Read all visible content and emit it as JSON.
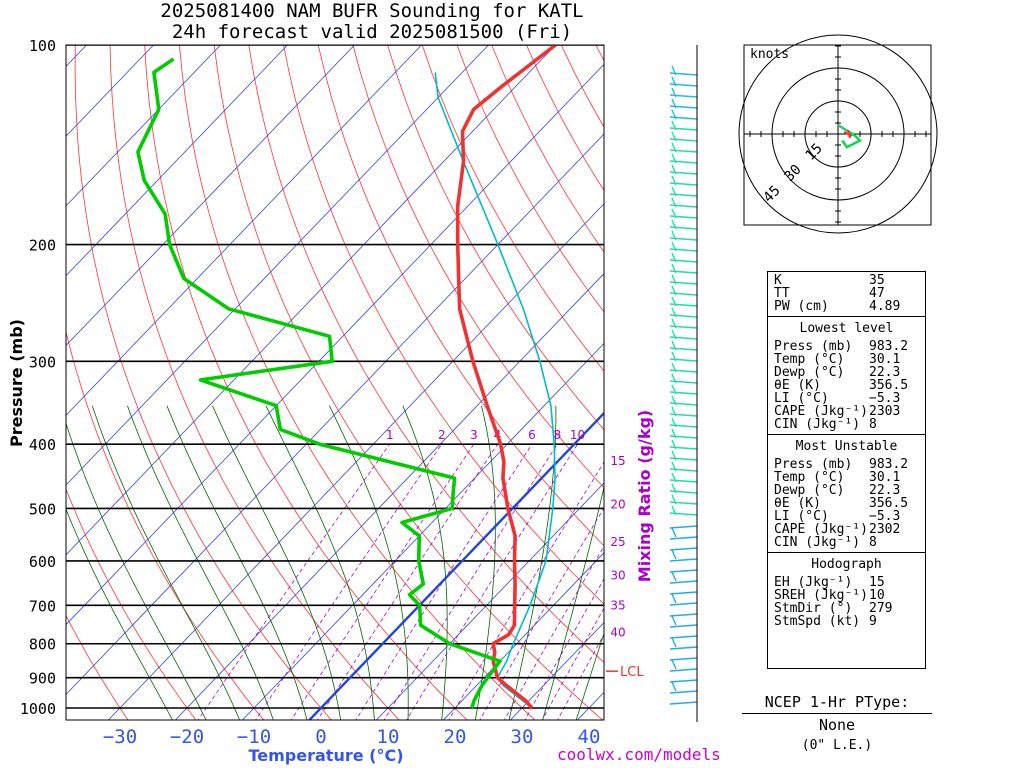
{
  "title": {
    "line1": "2025081400 NAM BUFR Sounding for KATL",
    "line2": "24h forecast valid 2025081500 (Fri)"
  },
  "site_credit": "coolwx.com/models",
  "chart_data": {
    "type": "skew-t",
    "xlabel": "Temperature (°C)",
    "ylabel": "Pressure (mb)",
    "xlim": [
      -38,
      42
    ],
    "ylim": [
      1050,
      100
    ],
    "x_ticks": [
      -30,
      -20,
      -10,
      0,
      10,
      20,
      30,
      40
    ],
    "y_ticks": [
      100,
      200,
      300,
      400,
      500,
      600,
      700,
      800,
      900,
      1000
    ],
    "temperature": {
      "color": "#ee3333",
      "points": [
        [
          1000,
          31.5
        ],
        [
          975,
          29.5
        ],
        [
          950,
          27.0
        ],
        [
          925,
          24.5
        ],
        [
          900,
          22.0
        ],
        [
          875,
          20.5
        ],
        [
          850,
          19.0
        ],
        [
          825,
          18.0
        ],
        [
          800,
          16.5
        ],
        [
          775,
          17.5
        ],
        [
          750,
          17.0
        ],
        [
          700,
          14.2
        ],
        [
          650,
          11.2
        ],
        [
          600,
          7.8
        ],
        [
          550,
          4.3
        ],
        [
          500,
          -0.7
        ],
        [
          450,
          -5.8
        ],
        [
          425,
          -8.0
        ],
        [
          400,
          -11.0
        ],
        [
          350,
          -18.5
        ],
        [
          300,
          -27.0
        ],
        [
          250,
          -36.5
        ],
        [
          200,
          -46.0
        ],
        [
          175,
          -51.5
        ],
        [
          150,
          -57.0
        ],
        [
          135,
          -61.5
        ],
        [
          125,
          -63.0
        ],
        [
          115,
          -62.0
        ],
        [
          100,
          -60.0
        ]
      ]
    },
    "dewpoint": {
      "color": "#00cc00",
      "points": [
        [
          1000,
          22.5
        ],
        [
          975,
          21.8
        ],
        [
          950,
          21.3
        ],
        [
          925,
          20.8
        ],
        [
          900,
          20.5
        ],
        [
          850,
          20.0
        ],
        [
          800,
          10.0
        ],
        [
          750,
          3.0
        ],
        [
          700,
          0.0
        ],
        [
          675,
          -3.0
        ],
        [
          650,
          -2.5
        ],
        [
          600,
          -6.5
        ],
        [
          550,
          -10.0
        ],
        [
          525,
          -14.5
        ],
        [
          500,
          -9.0
        ],
        [
          475,
          -11.0
        ],
        [
          450,
          -13.0
        ],
        [
          400,
          -38.0
        ],
        [
          380,
          -46.0
        ],
        [
          350,
          -50.0
        ],
        [
          320,
          -65.0
        ],
        [
          300,
          -48.0
        ],
        [
          275,
          -52.0
        ],
        [
          250,
          -71.0
        ],
        [
          225,
          -82.0
        ],
        [
          200,
          -89.0
        ],
        [
          180,
          -94.0
        ],
        [
          160,
          -102.0
        ],
        [
          145,
          -107.0
        ],
        [
          125,
          -110.0
        ],
        [
          110,
          -116.0
        ],
        [
          105,
          -115.0
        ]
      ]
    },
    "parcel": {
      "color": "#00bbcc",
      "points": [
        [
          1000,
          31.5
        ],
        [
          925,
          24.0
        ],
        [
          900,
          22.0
        ],
        [
          850,
          21.0
        ],
        [
          800,
          19.5
        ],
        [
          700,
          16.5
        ],
        [
          600,
          12.5
        ],
        [
          500,
          6.0
        ],
        [
          450,
          2.0
        ],
        [
          400,
          -3.0
        ],
        [
          350,
          -9.0
        ],
        [
          300,
          -17.0
        ],
        [
          250,
          -27.0
        ],
        [
          200,
          -40.0
        ],
        [
          150,
          -57.0
        ],
        [
          120,
          -70.0
        ],
        [
          110,
          -74.0
        ]
      ]
    },
    "freezing_line_color": "#2244dd",
    "lcl": {
      "label": "LCL",
      "pressure": 880
    },
    "mixing_ratio": {
      "label": "Mixing Ratio (g/kg)",
      "values": [
        1,
        2,
        3,
        4,
        6,
        8,
        10,
        15,
        20,
        25,
        30,
        35,
        40
      ]
    },
    "hodograph": {
      "unit_label": "knots",
      "ring_labels": [
        "15",
        "30",
        "45"
      ],
      "segments": [
        {
          "color": "#00dd44",
          "points": [
            [
              2,
              3
            ],
            [
              4,
              6
            ],
            [
              10,
              3
            ],
            [
              8,
              1
            ],
            [
              5,
              -1
            ]
          ]
        },
        {
          "color": "#22cc66",
          "points": [
            [
              5,
              -1
            ],
            [
              0,
              -4
            ]
          ]
        }
      ],
      "storm_motion_color": "#ee3333"
    }
  },
  "indices": {
    "top": [
      {
        "label": "K",
        "value": "35"
      },
      {
        "label": "TT",
        "value": "47"
      },
      {
        "label": "PW (cm)",
        "value": "4.89"
      }
    ],
    "lowest_head": "Lowest level",
    "lowest": [
      {
        "label": "Press (mb)",
        "value": "983.2"
      },
      {
        "label": "Temp (°C)",
        "value": "30.1"
      },
      {
        "label": "Dewp (°C)",
        "value": "22.3"
      },
      {
        "label": "θE (K)",
        "value": "356.5"
      },
      {
        "label": "LI (°C)",
        "value": "−5.3"
      },
      {
        "label": "CAPE (Jkg⁻¹)",
        "value": "2303"
      },
      {
        "label": "CIN (Jkg⁻¹)",
        "value": "8"
      }
    ],
    "unstable_head": "Most Unstable",
    "unstable": [
      {
        "label": "Press (mb)",
        "value": "983.2"
      },
      {
        "label": "Temp (°C)",
        "value": "30.1"
      },
      {
        "label": "Dewp (°C)",
        "value": "22.3"
      },
      {
        "label": "θE (K)",
        "value": "356.5"
      },
      {
        "label": "LI (°C)",
        "value": "−5.3"
      },
      {
        "label": "CAPE (Jkg⁻¹)",
        "value": "2302"
      },
      {
        "label": "CIN (Jkg⁻¹)",
        "value": "8"
      }
    ],
    "hodo_head": "Hodograph",
    "hodo": [
      {
        "label": "EH (Jkg⁻¹)",
        "value": "15"
      },
      {
        "label": "SREH (Jkg⁻¹)",
        "value": "10"
      },
      {
        "label": "StmDir (°)",
        "value": "279"
      },
      {
        "label": "StmSpd (kt)",
        "value": "9"
      }
    ]
  },
  "ptype": {
    "head": "NCEP 1-Hr PType:",
    "value": "None",
    "sub": "(0\" L.E.)"
  }
}
